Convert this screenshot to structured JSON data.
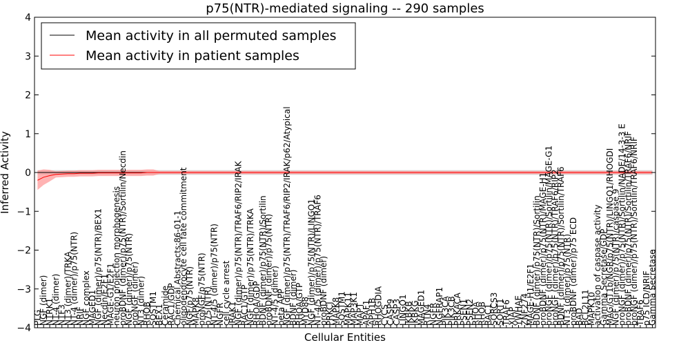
{
  "chart_data": {
    "type": "line",
    "title": "p75(NTR)-mediated signaling -- 290 samples",
    "xlabel": "Cellular Entities",
    "ylabel": "Inferred Activity",
    "ylim": [
      -4,
      4
    ],
    "yticks": [
      -4,
      -3,
      -2,
      -1,
      0,
      1,
      2,
      3,
      4
    ],
    "grid": false,
    "legend_position": "top-left",
    "colors": {
      "permuted": "#000000",
      "patient": "#ff0000",
      "patient_band": "#ff9999",
      "permuted_band": "#c8c8c8"
    },
    "categories": [
      "PLG",
      "NGF (dimer)",
      "NTRK1",
      "NT-4 (dimer)",
      "NTF3",
      "NT3 (dimer)/TRKA",
      "NT-4 (dimer)/p75(NTR)",
      "NRIF",
      "NGF complex",
      "MAGED1",
      "NGF (dimer)/p75(NTR)/BEX1",
      "Necdin/E2F1",
      "MAGE-G1/E2F1",
      "neuron projection morphogenesis",
      "proBDNF (dimer)/p75(NTR)/Sortilin/Necdin",
      "NGF (dimer)/p75(NTR)",
      "proNGF (dimer)",
      "NT3 (dimer)",
      "RHOB",
      "SQSTM1",
      "BEX1",
      "Ceramide",
      "RAC1/GDP",
      "Chemical Abstracts:86-01-1",
      "oligodendrocyte cell fate commitment",
      "NGF/p75(NTR)",
      "MAPK8",
      "proNGF/p75(NTR)",
      "p75(NTR)",
      "NT-4/5 (dimer)/p75(NTR)",
      "NGFR",
      "cell cycle arrest",
      "IRAK1",
      "NGF (dimer)/p75(NTR)/TRAF6/RIP2/IRAK",
      "RAC1/GTP",
      "NGF (dimer)/p75(NTR)/TRKA",
      "RHOA/GDP",
      "BDNF (dimer)/p75(NTR)/Sortilin",
      "proBDNF (dimer)/p75(NTR)",
      "NT-4/5 (dimer)",
      "beta APP",
      "NGF (dimer)/p75(NTR)/TRAF6/RIP2/IRAK/p62/Atypical",
      "BDNF (dimer)",
      "RHOA/GTP",
      "MYD88",
      "NGF (dimer)/p75(NTR)/LINGO1",
      "NT-4/5 (dimer)/p75(NTR)/TRAF6",
      "proBDNF (dimer)",
      "PRKCI",
      "MAPK8",
      "SQSTM1",
      "MAPK11",
      "MAP3K1",
      "MAPT",
      "APAF1",
      "APH1B",
      "RHOGDIA",
      "CYCS",
      "CASP9",
      "CASP3",
      "LINGO1",
      "IKBKB",
      "IKBKG",
      "MAGED1",
      "RTN4",
      "NGFR",
      "NGFRAP1",
      "PIK3CA",
      "PIK3CB",
      "PRKACA",
      "PSEN1",
      "PSEN2",
      "RHOA",
      "RHOB",
      "RAC1",
      "SORCS3",
      "SORT1",
      "TRAF6",
      "XIAP",
      "YWHAE",
      "ZNF274",
      "MAGE-H1/E2F1",
      "BDNF (dimer)/p75(NTR)/Sortilin",
      "proBDNF (dimer)/p75(NTR)/MAGE-H1",
      "proNGF (dimer)/p75(NTR)/Sortilin/MAGE-G1",
      "proNGF (dimer)/p75(NTR)/TRAF6/RIP2",
      "BDNF (dimer)/p75(NTR)/Sortilin/TRAF6",
      "NT3 (dimer)/p75(NTR)",
      "proBDNF (dimer)/p75 ECD",
      "BAD",
      "BCL2L11",
      "MAPK10",
      "activation of caspase activity",
      "Gamma Secretase/GDP",
      "MAG/GT1b/NGR/p75(NTR)/LINGO1/RHOGDI",
      "NGF (dimer)/p75(NTR)/caspase 9",
      "proNGF (dimer)/p75(NTR)/Sortilin/NADE/14-3-3 E",
      "proBDNF (dimer)/p75(NTR)/Sortilin/TRAF6/NRIF",
      "proNGF (dimer)/p75(NTR)/Sortilin/TRAF6/NRIF",
      "TRAF6",
      "p75 ICD/NRIF",
      "Gamma Secretase"
    ],
    "series": [
      {
        "name": "Mean activity in all permuted samples",
        "values": [
          0,
          0,
          0,
          0,
          0,
          0,
          0,
          0,
          0,
          0,
          0,
          0,
          0,
          0,
          0,
          0,
          0,
          0,
          0,
          0,
          0,
          0,
          0,
          0,
          0,
          0,
          0,
          0,
          0,
          0,
          0,
          0,
          0,
          0,
          0,
          0,
          0,
          0,
          0,
          0,
          0,
          0,
          0,
          0,
          0,
          0,
          0,
          0,
          0,
          0,
          0,
          0,
          0,
          0,
          0,
          0,
          0,
          0,
          0,
          0,
          0,
          0,
          0,
          0,
          0,
          0,
          0,
          0,
          0,
          0,
          0,
          0,
          0,
          0,
          0,
          0,
          0,
          0,
          0,
          0,
          0,
          0,
          0,
          0,
          0,
          0,
          0,
          0,
          0,
          0,
          0,
          0,
          0,
          0,
          0,
          0,
          0,
          0,
          0,
          0,
          0,
          0
        ]
      },
      {
        "name": "Mean activity in patient samples",
        "values": [
          -0.2,
          -0.12,
          -0.08,
          -0.05,
          -0.04,
          -0.03,
          -0.03,
          -0.02,
          -0.02,
          -0.02,
          -0.01,
          -0.01,
          -0.01,
          -0.01,
          -0.01,
          -0.01,
          -0.01,
          -0.01,
          0,
          0,
          0,
          0,
          0,
          0,
          0,
          0,
          0,
          0,
          0,
          0,
          0,
          0,
          0,
          0,
          0,
          0,
          0,
          0,
          0,
          0,
          0,
          0,
          0,
          0,
          0,
          0,
          0,
          0,
          0,
          0,
          0,
          0,
          0,
          0,
          0,
          0,
          0,
          0,
          0,
          0,
          0,
          0,
          0,
          0,
          0,
          0,
          0,
          0,
          0,
          0,
          0,
          0,
          0,
          0,
          0,
          0,
          0,
          0,
          0,
          0,
          0,
          0,
          0,
          0,
          0,
          0,
          0,
          0,
          0,
          0,
          0,
          0,
          0,
          0,
          0,
          0,
          0,
          0,
          0,
          0,
          0,
          0
        ]
      }
    ]
  }
}
